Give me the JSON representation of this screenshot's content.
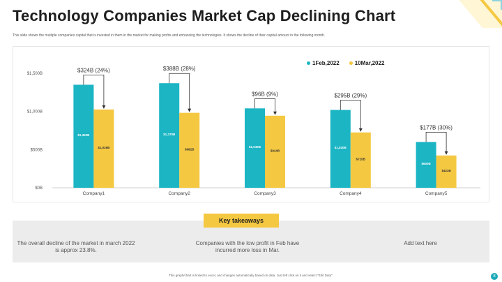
{
  "title": "Technology Companies Market Cap Declining Chart",
  "subtitle": "This slide shows the multiple companies capital that is invested in them in the market for making profits and enhancing the technologies. It shows the decline of their capital amount in the following month.",
  "colors": {
    "series1": "#1bb5c4",
    "series2": "#f5c842",
    "accent": "#f5c842",
    "teal": "#1aa9b8"
  },
  "chart_data": {
    "type": "bar",
    "categories": [
      "Company1",
      "Company2",
      "Company3",
      "Company4",
      "Company5"
    ],
    "series": [
      {
        "name": "1Feb,2022",
        "values": [
          1350,
          1370,
          1040,
          1020,
          600
        ],
        "bar_labels": [
          "$1,350B",
          "$1,370B",
          "$1,040B",
          "$1,020B",
          "$600B"
        ]
      },
      {
        "name": "10Mar,2022",
        "values": [
          1026,
          982,
          944,
          725,
          423
        ],
        "bar_labels": [
          "$1,026B",
          "$982B",
          "$944B",
          "$725B",
          "$423B"
        ]
      }
    ],
    "annotations": [
      "$324B (24%)",
      "$388B (28%)",
      "$96B (9%)",
      "$295B (29%)",
      "$177B (30%)"
    ],
    "ytick_labels": [
      "$0B",
      "$500B",
      "$1,000B",
      "$1,500B"
    ],
    "yticks": [
      0,
      500,
      1000,
      1500
    ],
    "ylim": [
      0,
      1500
    ],
    "grid": false,
    "legend_position": "top-right"
  },
  "key_takeaways": {
    "label": "Key takeaways",
    "items": [
      "The overall decline of the market in march 2022 is approx 23.8%.",
      "Companies with the low profit in Feb have incurred more loss in Mar.",
      "Add text here"
    ]
  },
  "footer": "This graph/chart is linked to excel, and changes automatically based on data. Just left click on it and select \"Edit Data\".",
  "page_number": "8"
}
